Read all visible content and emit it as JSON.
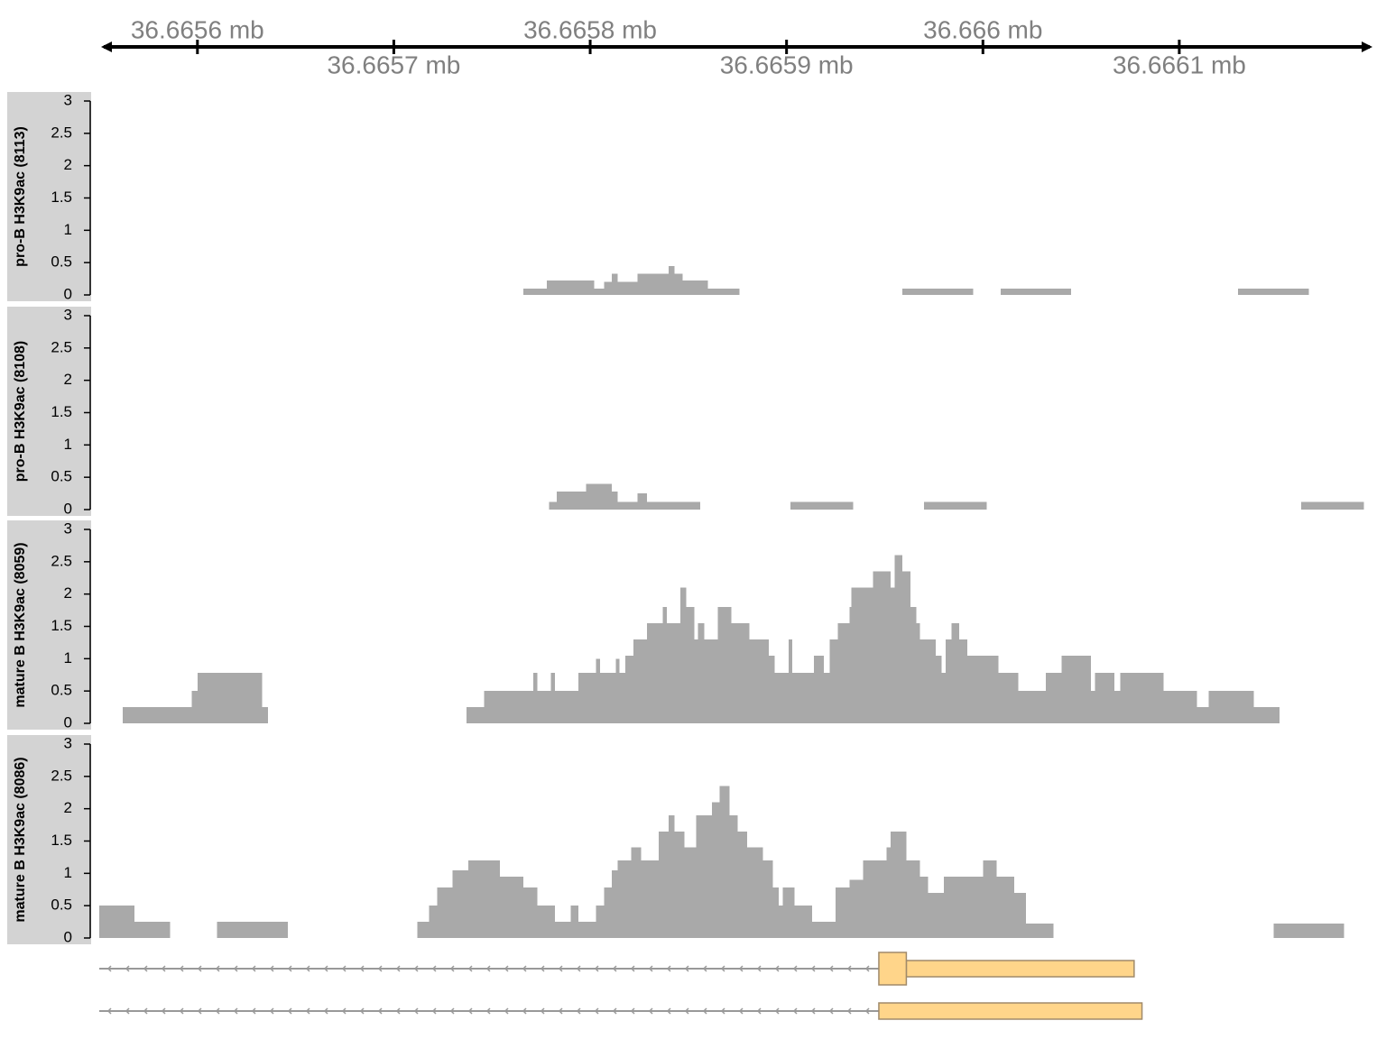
{
  "genome_axis": {
    "xlim": [
      36665550,
      36666197
    ],
    "xticks": [
      {
        "value": 36665600,
        "label": "36.6656 mb"
      },
      {
        "value": 36665700,
        "label": "36.6657 mb"
      },
      {
        "value": 36665800,
        "label": "36.6658 mb"
      },
      {
        "value": 36665900,
        "label": "36.6659 mb"
      },
      {
        "value": 36666000,
        "label": "36.666 mb"
      },
      {
        "value": 36666100,
        "label": "36.6661 mb"
      }
    ]
  },
  "chart_data": [
    {
      "type": "histogram",
      "title": "pro-B H3K9ac (8113)",
      "color": "#a9a9a9",
      "ylim": [
        0,
        3
      ],
      "yticks": [
        0,
        0.5,
        1,
        1.5,
        2,
        2.5,
        3
      ],
      "bins": [
        36665766,
        36665778,
        36665802,
        36665807,
        36665811,
        36665814,
        36665824,
        36665840,
        36665843,
        36665847,
        36665860,
        36665876,
        36665959,
        36665995,
        36666009,
        36666045,
        36666130,
        36666166
      ],
      "values": [
        0.1,
        0.22,
        0.1,
        0.2,
        0.33,
        0.2,
        0.33,
        0.45,
        0.33,
        0.22,
        0.1,
        null,
        0.1,
        null,
        0.1,
        null,
        0.1
      ]
    },
    {
      "type": "histogram",
      "title": "pro-B H3K9ac (8108)",
      "color": "#a9a9a9",
      "ylim": [
        0,
        3
      ],
      "yticks": [
        0,
        0.5,
        1,
        1.5,
        2,
        2.5,
        3
      ],
      "bins": [
        36665779,
        36665783,
        36665798,
        36665811,
        36665814,
        36665824,
        36665829,
        36665856,
        36665902,
        36665934,
        36665970,
        36666002,
        36666162,
        36666194
      ],
      "values": [
        0.12,
        0.28,
        0.4,
        0.28,
        0.12,
        0.25,
        0.12,
        null,
        0.12,
        null,
        0.12,
        null,
        0.12
      ]
    },
    {
      "type": "histogram",
      "title": "mature B H3K9ac (8059)",
      "color": "#a9a9a9",
      "ylim": [
        0,
        3
      ],
      "yticks": [
        0,
        0.5,
        1,
        1.5,
        2,
        2.5,
        3
      ],
      "bins": [
        36665562,
        36665597,
        36665600,
        36665633,
        36665636,
        36665737,
        36665746,
        36665771,
        36665773,
        36665780,
        36665782,
        36665794,
        36665803,
        36665805,
        36665813,
        36665815,
        36665818,
        36665822,
        36665829,
        36665837,
        36665839,
        36665846,
        36665849,
        36665853,
        36665855,
        36665858,
        36665865,
        36665872,
        36665881,
        36665891,
        36665894,
        36665901,
        36665903,
        36665914,
        36665919,
        36665922,
        36665926,
        36665932,
        36665933,
        36665941,
        36665944,
        36665953,
        36665955,
        36665959,
        36665963,
        36665966,
        36665968,
        36665976,
        36665979,
        36665981,
        36665984,
        36665988,
        36665992,
        36666008,
        36666018,
        36666032,
        36666040,
        36666055,
        36666057,
        36666067,
        36666070,
        36666092,
        36666109,
        36666115,
        36666138,
        36666151
      ],
      "values": [
        0.25,
        0.5,
        0.78,
        0.25,
        null,
        0.25,
        0.5,
        0.78,
        0.5,
        0.78,
        0.5,
        0.78,
        1,
        0.78,
        1,
        0.78,
        1.05,
        1.3,
        1.55,
        1.8,
        1.55,
        2.1,
        1.8,
        1.3,
        1.55,
        1.3,
        1.8,
        1.55,
        1.3,
        1.05,
        0.78,
        1.3,
        0.78,
        1.05,
        0.78,
        1.3,
        1.55,
        1.8,
        2.1,
        2.1,
        2.35,
        2.1,
        2.6,
        2.35,
        1.8,
        1.55,
        1.3,
        1.05,
        0.78,
        1.3,
        1.55,
        1.3,
        1.05,
        0.78,
        0.5,
        0.78,
        1.05,
        0.5,
        0.78,
        0.5,
        0.78,
        0.5,
        0.25,
        0.5,
        0.25
      ]
    },
    {
      "type": "histogram",
      "title": "mature B H3K9ac (8086)",
      "color": "#a9a9a9",
      "ylim": [
        0,
        3
      ],
      "yticks": [
        0,
        0.5,
        1,
        1.5,
        2,
        2.5,
        3
      ],
      "bins": [
        36665550,
        36665568,
        36665586,
        36665610,
        36665646,
        36665712,
        36665718,
        36665722,
        36665730,
        36665738,
        36665754,
        36665766,
        36665773,
        36665782,
        36665790,
        36665794,
        36665803,
        36665807,
        36665811,
        36665814,
        36665821,
        36665826,
        36665835,
        36665840,
        36665843,
        36665848,
        36665854,
        36665862,
        36665866,
        36665871,
        36665875,
        36665880,
        36665888,
        36665893,
        36665896,
        36665898,
        36665904,
        36665913,
        36665925,
        36665932,
        36665939,
        36665951,
        36665953,
        36665961,
        36665968,
        36665972,
        36665980,
        36666000,
        36666007,
        36666016,
        36666022,
        36666036,
        36666148,
        36666184
      ],
      "values": [
        0.5,
        0.25,
        null,
        0.25,
        null,
        0.25,
        0.5,
        0.78,
        1.05,
        1.2,
        0.95,
        0.78,
        0.5,
        0.25,
        0.5,
        0.25,
        0.5,
        0.78,
        1.05,
        1.2,
        1.4,
        1.2,
        1.65,
        1.9,
        1.65,
        1.4,
        1.9,
        2.1,
        2.35,
        1.9,
        1.65,
        1.4,
        1.2,
        0.78,
        0.5,
        0.78,
        0.5,
        0.25,
        0.78,
        0.9,
        1.2,
        1.4,
        1.65,
        1.2,
        0.95,
        0.7,
        0.95,
        1.2,
        0.95,
        0.7,
        0.22,
        null,
        0.22
      ]
    }
  ],
  "transcripts": [
    {
      "line": [
        36665550,
        36665947
      ],
      "coding": [
        [
          36665947,
          36665961
        ]
      ],
      "utr": [
        [
          36665961,
          36666077
        ]
      ]
    },
    {
      "line": [
        36665550,
        36665947
      ],
      "coding": [],
      "utr": [
        [
          36665947,
          36666081
        ]
      ]
    }
  ]
}
